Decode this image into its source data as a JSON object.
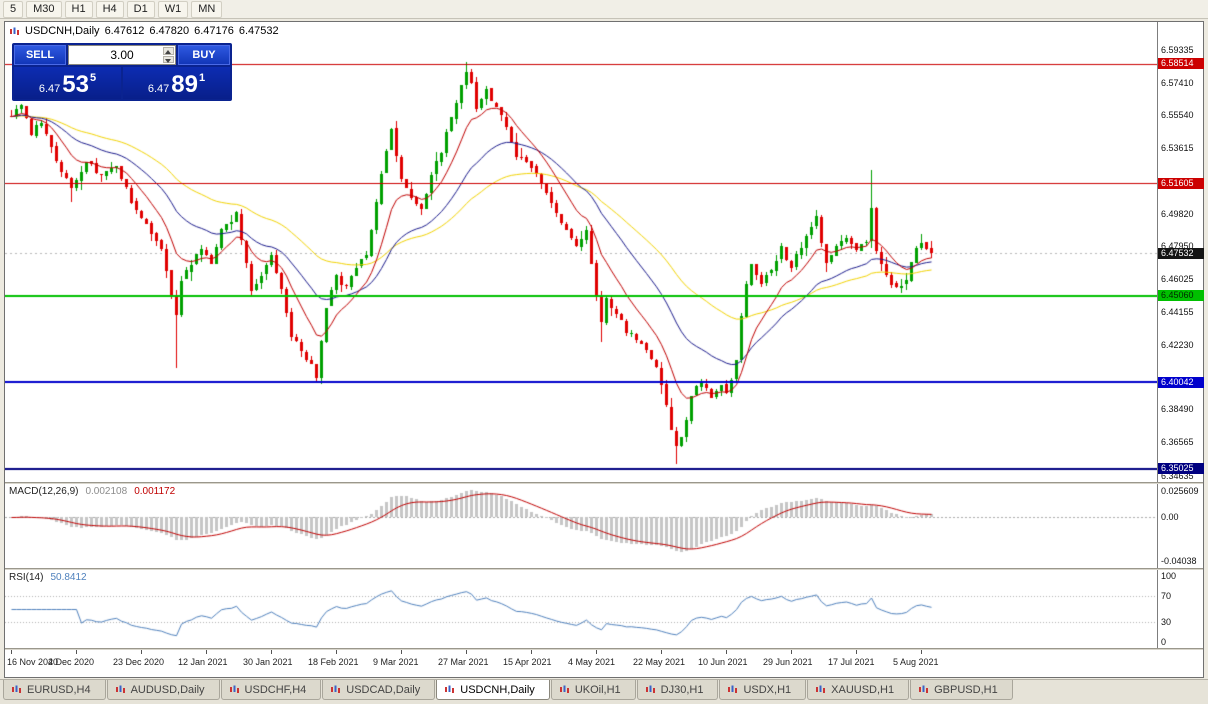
{
  "toolbar": {
    "buttons": [
      "5",
      "M30",
      "H1",
      "H4",
      "D1",
      "W1",
      "MN"
    ]
  },
  "chart": {
    "title": "USDCNH,Daily",
    "open": "6.47612",
    "high": "6.47820",
    "low": "6.47176",
    "close": "6.47532"
  },
  "trade_panel": {
    "sell_label": "SELL",
    "buy_label": "BUY",
    "volume": "3.00",
    "sell_price": {
      "small": "6.47",
      "big": "53",
      "sup": "5"
    },
    "buy_price": {
      "small": "6.47",
      "big": "89",
      "sup": "1"
    }
  },
  "price_axis": {
    "ticks": [
      "6.59335",
      "6.57410",
      "6.55540",
      "6.53615",
      "6.49820",
      "6.47950",
      "6.46025",
      "6.44155",
      "6.42230",
      "6.38490",
      "6.36565",
      "6.34635"
    ],
    "levels": [
      {
        "value": "6.58514",
        "price": 6.58514,
        "color": "#cc0000",
        "text": "#ffffff",
        "width": 1
      },
      {
        "value": "6.51605",
        "price": 6.51605,
        "color": "#cc0000",
        "text": "#ffffff",
        "width": 1
      },
      {
        "value": "6.45060",
        "price": 6.4506,
        "color": "#00c000",
        "text": "#002800",
        "width": 2
      },
      {
        "value": "6.40042",
        "price": 6.40042,
        "color": "#0000cc",
        "text": "#ffffff",
        "width": 2
      },
      {
        "value": "6.35025",
        "price": 6.35025,
        "color": "#000080",
        "text": "#ffffff",
        "width": 2
      }
    ],
    "current": {
      "value": "6.47532",
      "price": 6.47532,
      "bg": "#141414"
    }
  },
  "macd": {
    "label": "MACD(12,26,9)",
    "value_main": "0.002108",
    "value_signal": "0.001172",
    "axis_top": "0.025609",
    "axis_zero": "0.00",
    "axis_bottom": "-0.04038"
  },
  "rsi": {
    "label": "RSI(14)",
    "value": "50.8412",
    "axis": [
      {
        "text": "100",
        "v": 100
      },
      {
        "text": "70",
        "v": 70
      },
      {
        "text": "30",
        "v": 30
      },
      {
        "text": "0",
        "v": 0
      }
    ],
    "levels": [
      70,
      30
    ]
  },
  "time_axis": {
    "labels": [
      {
        "text": "16 Nov 2020",
        "day": 0
      },
      {
        "text": "4 Dec 2020",
        "day": 13
      },
      {
        "text": "23 Dec 2020",
        "day": 26
      },
      {
        "text": "12 Jan 2021",
        "day": 39
      },
      {
        "text": "30 Jan 2021",
        "day": 52
      },
      {
        "text": "18 Feb 2021",
        "day": 65
      },
      {
        "text": "9 Mar 2021",
        "day": 78
      },
      {
        "text": "27 Mar 2021",
        "day": 91
      },
      {
        "text": "15 Apr 2021",
        "day": 104
      },
      {
        "text": "4 May 2021",
        "day": 117
      },
      {
        "text": "22 May 2021",
        "day": 130
      },
      {
        "text": "10 Jun 2021",
        "day": 143
      },
      {
        "text": "29 Jun 2021",
        "day": 156
      },
      {
        "text": "17 Jul 2021",
        "day": 169
      },
      {
        "text": "5 Aug 2021",
        "day": 182
      }
    ]
  },
  "tabs": [
    {
      "label": "EURUSD,H4",
      "active": false
    },
    {
      "label": "AUDUSD,Daily",
      "active": false
    },
    {
      "label": "USDCHF,H4",
      "active": false
    },
    {
      "label": "USDCAD,Daily",
      "active": false
    },
    {
      "label": "USDCNH,Daily",
      "active": true
    },
    {
      "label": "UKOil,H1",
      "active": false
    },
    {
      "label": "DJ30,H1",
      "active": false
    },
    {
      "label": "USDX,H1",
      "active": false
    },
    {
      "label": "XAUUSD,H1",
      "active": false
    },
    {
      "label": "GBPUSD,H1",
      "active": false
    }
  ],
  "chart_data": {
    "type": "candlestick",
    "symbol": "USDCNH",
    "timeframe": "Daily",
    "num_candles": 185,
    "seed": 42,
    "price_view": {
      "top": 6.6094,
      "bottom": 6.3427
    },
    "ma_periods": {
      "fast": 10,
      "mid": 25,
      "slow": 50
    },
    "indicators": {
      "macd": [
        12,
        26,
        9
      ],
      "rsi": 14
    },
    "colors": {
      "up": "#00a000",
      "down": "#e00000",
      "ma_fast": "#c00000",
      "ma_mid": "#1a1a8c",
      "ma_slow": "#f2d300",
      "macd_hist": "#c6c6c6",
      "macd_signal": "#c00000",
      "rsi_line": "#4f81bd",
      "current_line": "#b8b8b8"
    },
    "anchors": [
      [
        0,
        6.555
      ],
      [
        2,
        6.562
      ],
      [
        4,
        6.545
      ],
      [
        6,
        6.552
      ],
      [
        9,
        6.53
      ],
      [
        12,
        6.512
      ],
      [
        15,
        6.528
      ],
      [
        18,
        6.52
      ],
      [
        21,
        6.526
      ],
      [
        24,
        6.505
      ],
      [
        27,
        6.492
      ],
      [
        30,
        6.478
      ],
      [
        32,
        6.452
      ],
      [
        33,
        6.438
      ],
      [
        34,
        6.46
      ],
      [
        36,
        6.47
      ],
      [
        38,
        6.478
      ],
      [
        40,
        6.47
      ],
      [
        42,
        6.488
      ],
      [
        45,
        6.498
      ],
      [
        47,
        6.47
      ],
      [
        48,
        6.452
      ],
      [
        50,
        6.462
      ],
      [
        52,
        6.473
      ],
      [
        54,
        6.453
      ],
      [
        56,
        6.428
      ],
      [
        58,
        6.42
      ],
      [
        60,
        6.41
      ],
      [
        61,
        6.403
      ],
      [
        63,
        6.445
      ],
      [
        65,
        6.462
      ],
      [
        67,
        6.455
      ],
      [
        69,
        6.468
      ],
      [
        71,
        6.475
      ],
      [
        73,
        6.505
      ],
      [
        75,
        6.535
      ],
      [
        76,
        6.548
      ],
      [
        78,
        6.518
      ],
      [
        80,
        6.508
      ],
      [
        82,
        6.5
      ],
      [
        84,
        6.52
      ],
      [
        86,
        6.535
      ],
      [
        88,
        6.555
      ],
      [
        90,
        6.572
      ],
      [
        91,
        6.58
      ],
      [
        92,
        6.575
      ],
      [
        93,
        6.56
      ],
      [
        95,
        6.57
      ],
      [
        97,
        6.56
      ],
      [
        99,
        6.548
      ],
      [
        101,
        6.532
      ],
      [
        103,
        6.528
      ],
      [
        105,
        6.522
      ],
      [
        107,
        6.51
      ],
      [
        109,
        6.498
      ],
      [
        111,
        6.49
      ],
      [
        113,
        6.48
      ],
      [
        115,
        6.488
      ],
      [
        116,
        6.47
      ],
      [
        117,
        6.452
      ],
      [
        118,
        6.435
      ],
      [
        119,
        6.448
      ],
      [
        121,
        6.44
      ],
      [
        123,
        6.43
      ],
      [
        125,
        6.425
      ],
      [
        127,
        6.418
      ],
      [
        129,
        6.41
      ],
      [
        130,
        6.4
      ],
      [
        131,
        6.388
      ],
      [
        132,
        6.372
      ],
      [
        133,
        6.362
      ],
      [
        134,
        6.368
      ],
      [
        135,
        6.38
      ],
      [
        136,
        6.394
      ],
      [
        138,
        6.4
      ],
      [
        140,
        6.392
      ],
      [
        142,
        6.398
      ],
      [
        143,
        6.393
      ],
      [
        144,
        6.402
      ],
      [
        145,
        6.412
      ],
      [
        146,
        6.438
      ],
      [
        147,
        6.456
      ],
      [
        148,
        6.47
      ],
      [
        150,
        6.458
      ],
      [
        152,
        6.466
      ],
      [
        154,
        6.478
      ],
      [
        156,
        6.468
      ],
      [
        158,
        6.48
      ],
      [
        160,
        6.49
      ],
      [
        161,
        6.498
      ],
      [
        162,
        6.48
      ],
      [
        163,
        6.47
      ],
      [
        165,
        6.478
      ],
      [
        167,
        6.484
      ],
      [
        169,
        6.478
      ],
      [
        171,
        6.482
      ],
      [
        172,
        6.5
      ],
      [
        173,
        6.478
      ],
      [
        175,
        6.462
      ],
      [
        177,
        6.455
      ],
      [
        179,
        6.458
      ],
      [
        180,
        6.47
      ],
      [
        181,
        6.478
      ],
      [
        182,
        6.482
      ],
      [
        183,
        6.477
      ],
      [
        184,
        6.47532
      ]
    ],
    "wick_events": [
      {
        "day": 91,
        "high": 6.586
      },
      {
        "day": 133,
        "low": 6.3535
      },
      {
        "day": 172,
        "high": 6.5235
      },
      {
        "day": 33,
        "low": 6.409
      },
      {
        "day": 118,
        "low": 6.424
      },
      {
        "day": 12,
        "low": 6.505
      }
    ]
  }
}
